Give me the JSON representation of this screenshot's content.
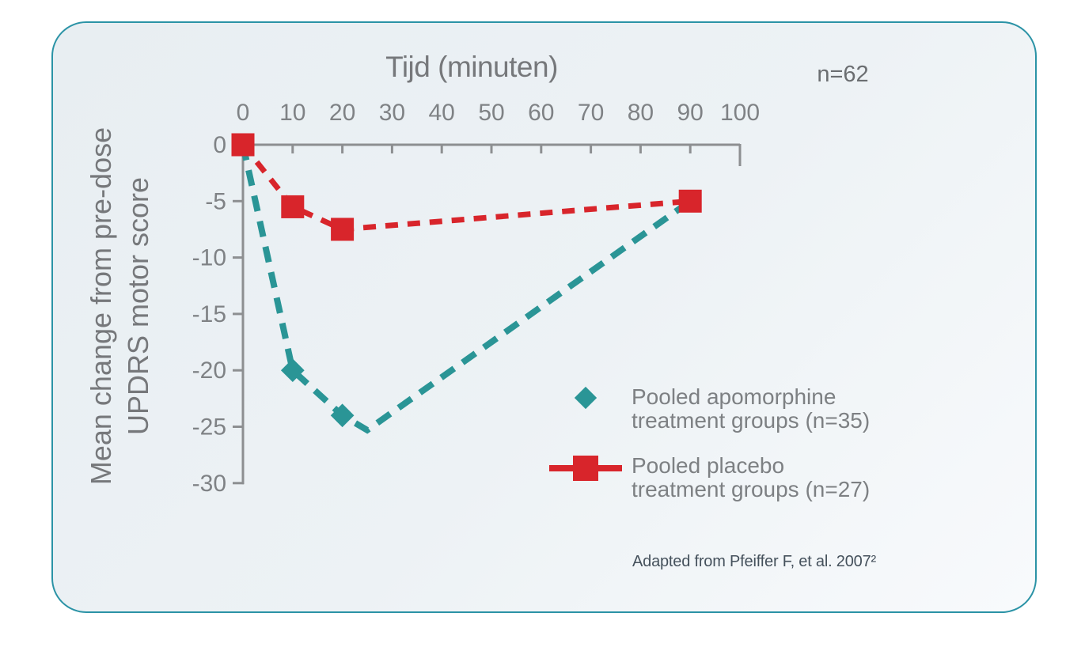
{
  "page": {
    "title_top": "Tijd (minuten)",
    "n_total": "n=62",
    "y_axis_label_line1": "Mean change from pre-dose",
    "y_axis_label_line2": "UPDRS motor score",
    "citation": "Adapted from Pfeiffer F, et al. 2007²"
  },
  "legend": {
    "items": [
      {
        "name": "apomorphine",
        "marker": "diamond",
        "color": "#2a9596",
        "label_line1": "Pooled apomorphine",
        "label_line2": "treatment groups (n=35)"
      },
      {
        "name": "placebo",
        "marker": "square-line",
        "color": "#d8252b",
        "label_line1": "Pooled placebo",
        "label_line2": "treatment groups (n=27)"
      }
    ]
  },
  "chart_data": {
    "type": "line",
    "title": "Tijd (minuten)",
    "xlabel": "Tijd (minuten)",
    "ylabel": "Mean change from pre-dose UPDRS motor score",
    "x_ticks": [
      0,
      10,
      20,
      30,
      40,
      50,
      60,
      70,
      80,
      90,
      100
    ],
    "y_ticks": [
      0,
      -5,
      -10,
      -15,
      -20,
      -25,
      -30
    ],
    "xlim": [
      0,
      100
    ],
    "ylim": [
      -30,
      0
    ],
    "grid": false,
    "legend_position": "lower right",
    "axis_color": "#8d8f91",
    "annotations": [
      "n=62",
      "Adapted from Pfeiffer F, et al. 2007²"
    ],
    "series": [
      {
        "name": "Pooled apomorphine treatment groups (n=35)",
        "color": "#2a9596",
        "marker": "diamond",
        "line_style": "dashed",
        "x": [
          0,
          10,
          20,
          90
        ],
        "y": [
          0,
          -20,
          -24,
          -5
        ],
        "marker_x": [
          10,
          20
        ],
        "line_x": [
          0,
          10,
          20,
          25,
          90
        ],
        "line_y": [
          0,
          -20,
          -24,
          -25.3,
          -5
        ]
      },
      {
        "name": "Pooled placebo treatment groups (n=27)",
        "color": "#d8252b",
        "marker": "square",
        "line_style": "dashed",
        "x": [
          0,
          10,
          20,
          90
        ],
        "y": [
          0,
          -5.5,
          -7.5,
          -5
        ],
        "marker_x": [
          0,
          10,
          20,
          90
        ]
      }
    ]
  }
}
